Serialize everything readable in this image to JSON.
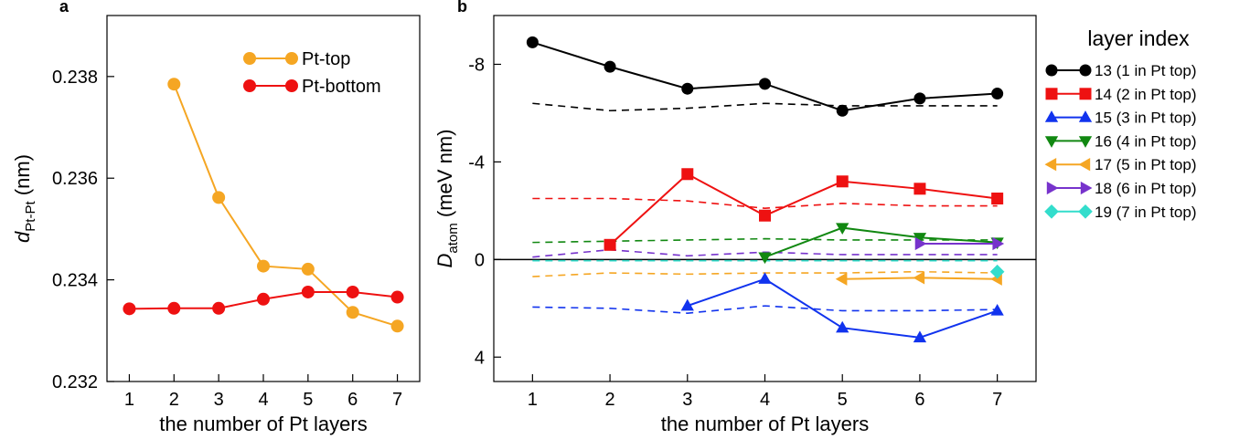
{
  "figure": {
    "panels": [
      {
        "letter": "a"
      },
      {
        "letter": "b"
      }
    ]
  },
  "chart_data": [
    {
      "type": "line",
      "panel": "a",
      "xlabel": "the number of Pt layers",
      "ylabel_main": "d",
      "ylabel_sub": "Pt-Pt",
      "ylabel_unit": "(nm)",
      "xlim": [
        0.5,
        7.5
      ],
      "ylim": [
        0.232,
        0.2392
      ],
      "xticks": [
        1,
        2,
        3,
        4,
        5,
        6,
        7
      ],
      "yticks": [
        0.232,
        0.234,
        0.236,
        0.238
      ],
      "ytick_labels": [
        "0.232",
        "0.234",
        "0.236",
        "0.238"
      ],
      "grid": false,
      "legend_position": "top-right",
      "series": [
        {
          "name": "Pt-top",
          "color": "#f5a623",
          "marker": "circle",
          "x": [
            2,
            3,
            4,
            5,
            6,
            7
          ],
          "y": [
            0.23785,
            0.23562,
            0.23427,
            0.23421,
            0.23336,
            0.23309
          ]
        },
        {
          "name": "Pt-bottom",
          "color": "#ee1111",
          "marker": "circle",
          "x": [
            1,
            2,
            3,
            4,
            5,
            6,
            7
          ],
          "y": [
            0.23343,
            0.23344,
            0.23344,
            0.23362,
            0.23376,
            0.23376,
            0.23366
          ]
        }
      ]
    },
    {
      "type": "line",
      "panel": "b",
      "xlabel": "the number of Pt layers",
      "ylabel_main": "D",
      "ylabel_sub": "atom",
      "ylabel_unit": "(meV nm)",
      "xlim": [
        0.5,
        7.5
      ],
      "ylim": [
        5,
        -10
      ],
      "y_inverted": true,
      "xticks": [
        1,
        2,
        3,
        4,
        5,
        6,
        7
      ],
      "yticks": [
        4,
        0,
        -4,
        -8
      ],
      "ytick_labels": [
        "4",
        "0",
        "-4",
        "-8"
      ],
      "zero_line": true,
      "grid": false,
      "legend_title": "layer index",
      "legend_position": "right, outside plot",
      "series": [
        {
          "name": "13 (1 in Pt top)",
          "color": "#000000",
          "marker": "circle",
          "x": [
            1,
            2,
            3,
            4,
            5,
            6,
            7
          ],
          "y": [
            -8.9,
            -7.9,
            -7.0,
            -7.2,
            -6.1,
            -6.6,
            -6.8
          ]
        },
        {
          "name": "14 (2 in Pt top)",
          "color": "#ee1111",
          "marker": "square",
          "x": [
            2,
            3,
            4,
            5,
            6,
            7
          ],
          "y": [
            -0.6,
            -3.5,
            -1.8,
            -3.2,
            -2.9,
            -2.5
          ]
        },
        {
          "name": "15 (3 in Pt top)",
          "color": "#1133ee",
          "marker": "triangle-up",
          "x": [
            3,
            4,
            5,
            6,
            7
          ],
          "y": [
            1.9,
            0.8,
            2.8,
            3.2,
            2.1
          ]
        },
        {
          "name": "16 (4 in Pt top)",
          "color": "#118811",
          "marker": "triangle-down",
          "x": [
            4,
            5,
            6,
            7
          ],
          "y": [
            -0.1,
            -1.3,
            -0.9,
            -0.7
          ]
        },
        {
          "name": "17 (5 in Pt top)",
          "color": "#f5a623",
          "marker": "triangle-left",
          "x": [
            5,
            6,
            7
          ],
          "y": [
            0.8,
            0.75,
            0.8
          ]
        },
        {
          "name": "18 (6 in Pt top)",
          "color": "#7733cc",
          "marker": "triangle-right",
          "x": [
            6,
            7
          ],
          "y": [
            -0.65,
            -0.65
          ]
        },
        {
          "name": "19 (7 in Pt top)",
          "color": "#33ddcc",
          "marker": "diamond",
          "x": [
            7
          ],
          "y": [
            0.5
          ]
        }
      ],
      "reference_lines": [
        {
          "color": "#000000",
          "x": [
            1,
            2,
            3,
            4,
            5,
            6,
            7
          ],
          "y": [
            -6.4,
            -6.1,
            -6.2,
            -6.4,
            -6.3,
            -6.3,
            -6.3
          ]
        },
        {
          "color": "#ee1111",
          "x": [
            1,
            2,
            3,
            4,
            5,
            6,
            7
          ],
          "y": [
            -2.5,
            -2.5,
            -2.4,
            -2.1,
            -2.3,
            -2.2,
            -2.2
          ]
        },
        {
          "color": "#118811",
          "x": [
            1,
            2,
            3,
            4,
            5,
            6,
            7
          ],
          "y": [
            -0.7,
            -0.75,
            -0.8,
            -0.85,
            -0.8,
            -0.8,
            -0.8
          ]
        },
        {
          "color": "#7733cc",
          "x": [
            1,
            2,
            3,
            4,
            5,
            6,
            7
          ],
          "y": [
            -0.1,
            -0.4,
            -0.15,
            -0.3,
            -0.2,
            -0.2,
            -0.2
          ]
        },
        {
          "color": "#33ddcc",
          "x": [
            1,
            2,
            3,
            4,
            5,
            6,
            7
          ],
          "y": [
            0.05,
            0.05,
            0.05,
            0.05,
            0.05,
            0.05,
            0.05
          ]
        },
        {
          "color": "#f5a623",
          "x": [
            1,
            2,
            3,
            4,
            5,
            6,
            7
          ],
          "y": [
            0.7,
            0.55,
            0.6,
            0.55,
            0.55,
            0.5,
            0.55
          ]
        },
        {
          "color": "#1133ee",
          "x": [
            1,
            2,
            3,
            4,
            5,
            6,
            7
          ],
          "y": [
            1.95,
            2.0,
            2.2,
            1.9,
            2.1,
            2.1,
            2.05
          ]
        }
      ]
    }
  ]
}
